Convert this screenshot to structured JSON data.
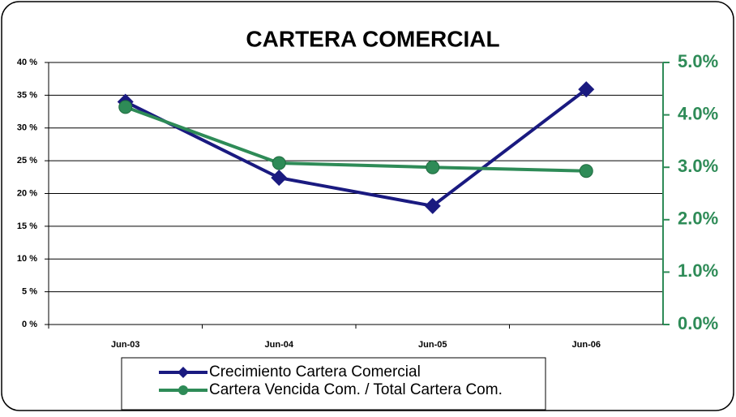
{
  "chart_data": {
    "type": "line",
    "title": "CARTERA COMERCIAL",
    "categories": [
      "Jun-03",
      "Jun-04",
      "Jun-05",
      "Jun-06"
    ],
    "series": [
      {
        "name": "Crecimiento Cartera Comercial",
        "color": "#1a1a80",
        "marker": "diamond",
        "values": [
          34,
          22.4,
          18.1,
          35.9
        ]
      },
      {
        "name": "Cartera Vencida Com. / Total Cartera Com.",
        "color": "#2e8b57",
        "marker": "circle",
        "axis": "y2",
        "values": [
          4.15,
          3.08,
          3.0,
          2.93
        ]
      }
    ],
    "ylim": [
      0,
      40
    ],
    "yticks": [
      {
        "value": 0,
        "label": "0 %"
      },
      {
        "value": 5,
        "label": "5 %"
      },
      {
        "value": 10,
        "label": "10 %"
      },
      {
        "value": 15,
        "label": "15 %"
      },
      {
        "value": 20,
        "label": "20 %"
      },
      {
        "value": 25,
        "label": "25 %"
      },
      {
        "value": 30,
        "label": "30 %"
      },
      {
        "value": 35,
        "label": "35 %"
      },
      {
        "value": 40,
        "label": "40 %"
      }
    ],
    "y2lim": [
      0,
      5
    ],
    "y2ticks": [
      {
        "value": 0,
        "label": "0.0%"
      },
      {
        "value": 1,
        "label": "1.0%"
      },
      {
        "value": 2,
        "label": "2.0%"
      },
      {
        "value": 3,
        "label": "3.0%"
      },
      {
        "value": 4,
        "label": "4.0%"
      },
      {
        "value": 5,
        "label": "5.0%"
      }
    ],
    "y2color": "#2e8b57",
    "grid": true
  }
}
